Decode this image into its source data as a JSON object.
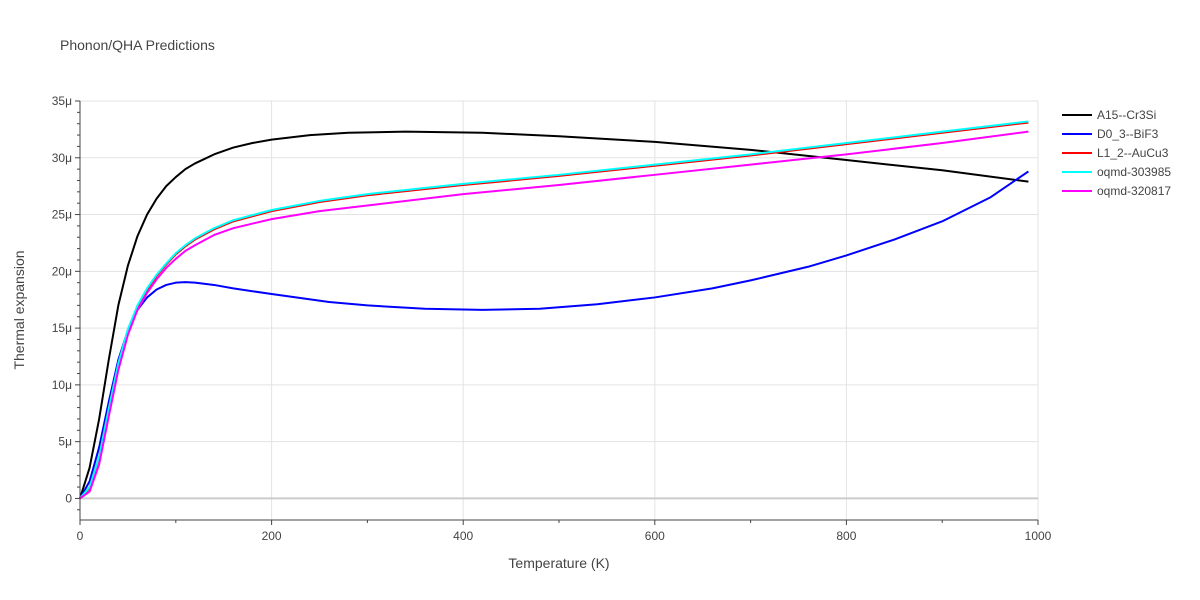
{
  "chart_data": {
    "type": "line",
    "title": "Phonon/QHA Predictions",
    "xlabel": "Temperature (K)",
    "ylabel": "Thermal expansion",
    "xlim": [
      0,
      1000
    ],
    "ylim": [
      -1.9,
      35
    ],
    "x_ticks": [
      0,
      200,
      400,
      600,
      800,
      1000
    ],
    "x_tick_labels": [
      "0",
      "200",
      "400",
      "600",
      "800",
      "1000"
    ],
    "y_ticks": [
      0,
      5,
      10,
      15,
      20,
      25,
      30,
      35
    ],
    "y_tick_labels": [
      "0",
      "5μ",
      "10μ",
      "15μ",
      "20μ",
      "25μ",
      "30μ",
      "35μ"
    ],
    "grid": true,
    "legend_position": "right",
    "series": [
      {
        "name": "A15--Cr3Si",
        "color": "#000000",
        "x": [
          0,
          10,
          20,
          30,
          40,
          50,
          60,
          70,
          80,
          90,
          100,
          110,
          120,
          130,
          140,
          160,
          180,
          200,
          240,
          280,
          340,
          420,
          500,
          600,
          700,
          800,
          900,
          990
        ],
        "y": [
          0,
          2.7,
          7.0,
          12.2,
          17.0,
          20.5,
          23.1,
          25.0,
          26.4,
          27.5,
          28.3,
          29.0,
          29.5,
          29.9,
          30.3,
          30.9,
          31.3,
          31.6,
          32.0,
          32.2,
          32.3,
          32.2,
          31.9,
          31.4,
          30.7,
          29.8,
          28.9,
          27.9
        ]
      },
      {
        "name": "D0_3--BiF3",
        "color": "#0000ff",
        "x": [
          0,
          10,
          20,
          30,
          40,
          50,
          60,
          70,
          80,
          90,
          100,
          110,
          120,
          140,
          160,
          200,
          260,
          300,
          360,
          420,
          480,
          540,
          600,
          660,
          700,
          760,
          800,
          850,
          900,
          950,
          990
        ],
        "y": [
          0,
          1.5,
          4.5,
          8.5,
          12.2,
          14.8,
          16.6,
          17.7,
          18.4,
          18.8,
          19.0,
          19.05,
          19.0,
          18.8,
          18.5,
          18.0,
          17.3,
          17.0,
          16.7,
          16.6,
          16.7,
          17.1,
          17.7,
          18.5,
          19.2,
          20.4,
          21.4,
          22.8,
          24.4,
          26.5,
          28.8
        ]
      },
      {
        "name": "L1_2--AuCu3",
        "color": "#ff0000",
        "x": [
          0,
          10,
          20,
          30,
          40,
          50,
          60,
          70,
          80,
          90,
          100,
          110,
          120,
          140,
          160,
          200,
          250,
          300,
          400,
          500,
          600,
          700,
          800,
          900,
          990
        ],
        "y": [
          0,
          0.9,
          3.6,
          7.8,
          11.8,
          14.8,
          16.9,
          18.4,
          19.6,
          20.6,
          21.5,
          22.2,
          22.8,
          23.7,
          24.4,
          25.3,
          26.1,
          26.7,
          27.6,
          28.4,
          29.3,
          30.2,
          31.2,
          32.2,
          33.1
        ]
      },
      {
        "name": "oqmd-303985",
        "color": "#00ffff",
        "x": [
          0,
          10,
          20,
          30,
          40,
          50,
          60,
          70,
          80,
          90,
          100,
          110,
          120,
          140,
          160,
          200,
          250,
          300,
          400,
          500,
          600,
          700,
          800,
          900,
          990
        ],
        "y": [
          0,
          1.0,
          3.7,
          7.9,
          11.9,
          14.9,
          17.0,
          18.5,
          19.7,
          20.7,
          21.6,
          22.3,
          22.9,
          23.8,
          24.5,
          25.4,
          26.2,
          26.8,
          27.7,
          28.5,
          29.4,
          30.3,
          31.3,
          32.3,
          33.2
        ]
      },
      {
        "name": "oqmd-320817",
        "color": "#ff00ff",
        "x": [
          0,
          10,
          20,
          30,
          40,
          50,
          60,
          70,
          80,
          90,
          100,
          110,
          120,
          140,
          160,
          200,
          250,
          300,
          400,
          500,
          600,
          700,
          800,
          900,
          990
        ],
        "y": [
          0,
          0.6,
          3.0,
          7.2,
          11.3,
          14.4,
          16.6,
          18.1,
          19.3,
          20.3,
          21.1,
          21.8,
          22.3,
          23.2,
          23.8,
          24.6,
          25.3,
          25.8,
          26.8,
          27.6,
          28.5,
          29.4,
          30.3,
          31.3,
          32.3
        ]
      }
    ]
  }
}
